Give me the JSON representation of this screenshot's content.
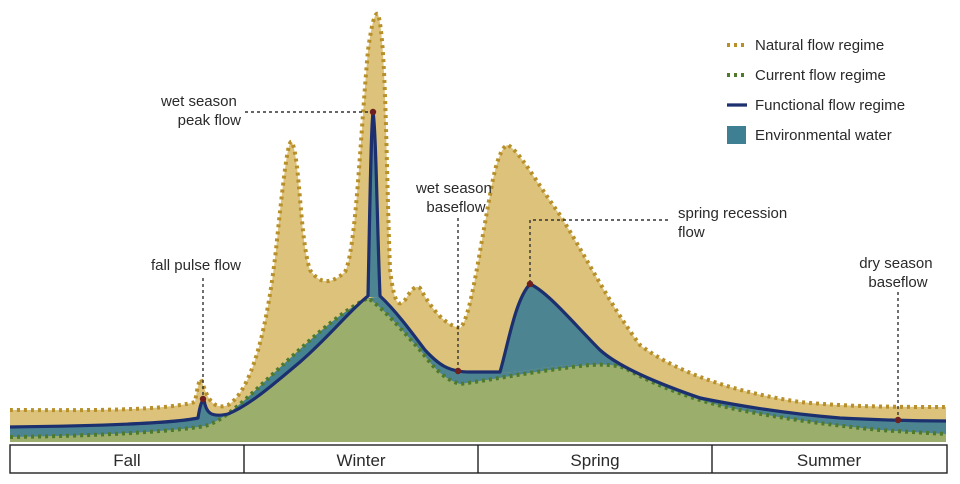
{
  "colors": {
    "natural_fill": "#dcc27b",
    "natural_line": "#b8902a",
    "current_fill": "#9cae6c",
    "current_line": "#4f7a2c",
    "functional_line": "#1c2f6e",
    "environmental_water": "#3f7f94",
    "point": "#6e1f1f"
  },
  "legend": [
    {
      "key": "natural",
      "label": "Natural flow regime",
      "style": "dotted-gold"
    },
    {
      "key": "current",
      "label": "Current flow regime",
      "style": "dotted-green"
    },
    {
      "key": "functional",
      "label": "Functional flow regime",
      "style": "solid-navy"
    },
    {
      "key": "environmental",
      "label": "Environmental water",
      "style": "teal-box"
    }
  ],
  "annotations": {
    "wet_peak": [
      "wet season",
      "peak flow"
    ],
    "wet_base": [
      "wet season",
      "baseflow"
    ],
    "spring_recession": [
      "spring recession",
      "flow"
    ],
    "fall_pulse": [
      "fall pulse flow"
    ],
    "dry_base": [
      "dry season",
      "baseflow"
    ]
  },
  "seasons": [
    "Fall",
    "Winter",
    "Spring",
    "Summer"
  ]
}
